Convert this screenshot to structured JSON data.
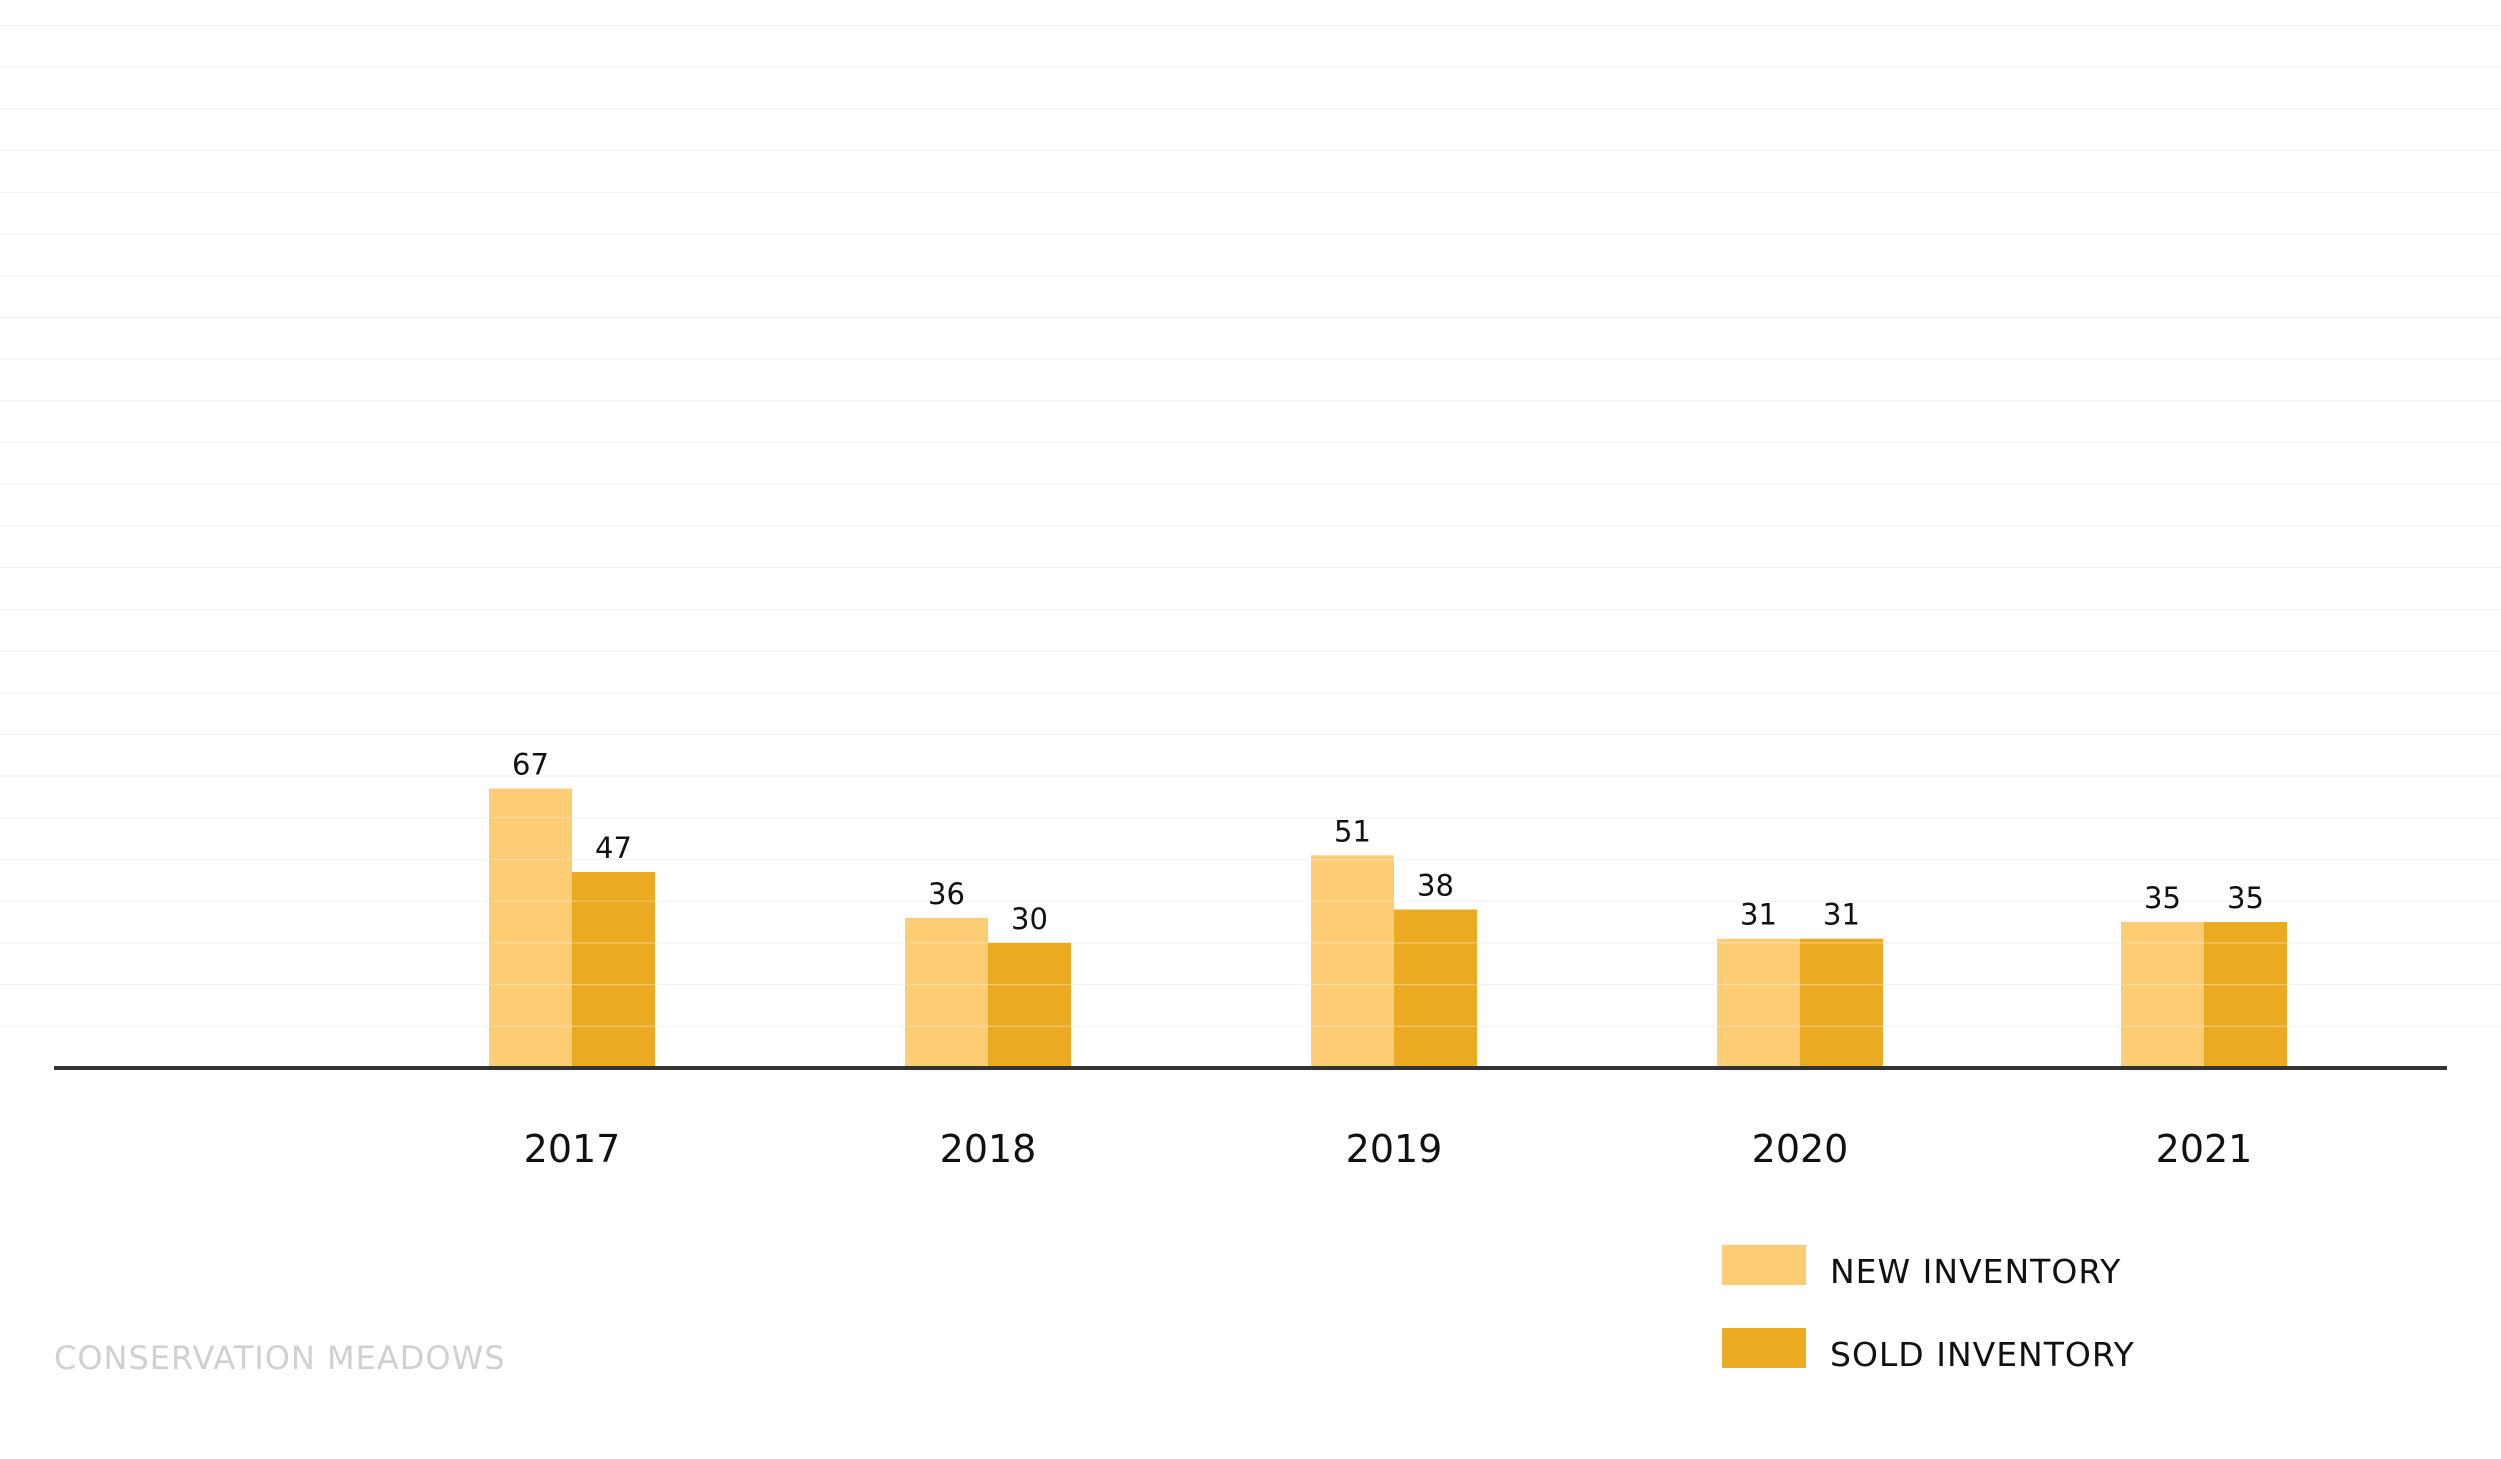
{
  "footer": {
    "brand": "CONSERVATION MEADOWS"
  },
  "colors": {
    "new_inventory": "#fecc74",
    "sold_inventory": "#eaab22",
    "baseline": "#333333",
    "gridline": "#f2f2f2",
    "footer_text": "#d0d0d0"
  },
  "chart_data": {
    "type": "bar",
    "title": "",
    "xlabel": "",
    "ylabel": "",
    "categories": [
      "2017",
      "2018",
      "2019",
      "2020",
      "2021"
    ],
    "series": [
      {
        "name": "NEW INVENTORY",
        "values": [
          67,
          36,
          51,
          31,
          35
        ]
      },
      {
        "name": "SOLD INVENTORY",
        "values": [
          47,
          30,
          38,
          31,
          35
        ]
      }
    ],
    "ylim": [
      0,
      250
    ],
    "grid": true,
    "legend_position": "bottom-right",
    "data_labels": true
  }
}
